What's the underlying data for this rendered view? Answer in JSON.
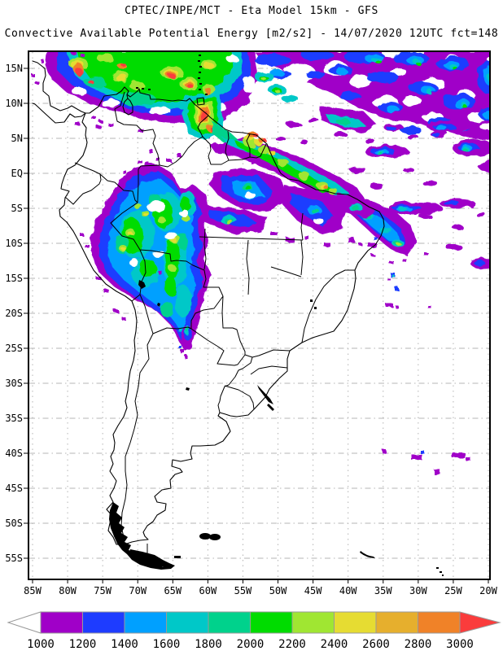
{
  "header": {
    "title_line1": "CPTEC/INPE/MCT -  Eta Model 15km - GFS",
    "title_line2": "Convective Available Potential Energy [m2/s2] - 14/07/2020 12UTC fct=148"
  },
  "map": {
    "y_axis_labels": [
      "15N",
      "10N",
      "5N",
      "EQ",
      "5S",
      "10S",
      "15S",
      "20S",
      "25S",
      "30S",
      "35S",
      "40S",
      "45S",
      "50S",
      "55S"
    ],
    "x_axis_labels": [
      "85W",
      "80W",
      "75W",
      "70W",
      "65W",
      "60W",
      "55W",
      "50W",
      "45W",
      "40W",
      "35W",
      "30W",
      "25W",
      "20W"
    ]
  },
  "colorbar": {
    "values": [
      "1000",
      "1200",
      "1400",
      "1600",
      "1800",
      "2000",
      "2200",
      "2400",
      "2600",
      "2800",
      "3000"
    ],
    "segment_colors": [
      "#A000C8",
      "#1E3CFF",
      "#00A0FF",
      "#00C8C8",
      "#00D28C",
      "#00DC00",
      "#A0E632",
      "#E6DC32",
      "#E6AF2D",
      "#F08228"
    ],
    "left_arrow_color": "#ffffff",
    "right_arrow_color": "#FA3C3C",
    "outline_color": "#999999"
  },
  "chart_data": {
    "type": "heatmap",
    "title": "CPTEC/INPE/MCT -  Eta Model 15km - GFS",
    "subtitle": "Convective Available Potential Energy [m2/s2] - 14/07/2020 12UTC fct=148",
    "institution": "CPTEC/INPE/MCT",
    "model": "Eta Model 15km - GFS",
    "variable": "Convective Available Potential Energy",
    "units": "m2/s2",
    "valid_date": "14/07/2020",
    "valid_time": "12UTC",
    "forecast_hour": "fct=148",
    "region": "South America",
    "lat_ticks": [
      "15N",
      "10N",
      "5N",
      "EQ",
      "5S",
      "10S",
      "15S",
      "20S",
      "25S",
      "30S",
      "35S",
      "40S",
      "45S",
      "50S",
      "55S"
    ],
    "lon_ticks": [
      "85W",
      "80W",
      "75W",
      "70W",
      "65W",
      "60W",
      "55W",
      "50W",
      "45W",
      "40W",
      "35W",
      "30W",
      "25W",
      "20W"
    ],
    "contour_levels": [
      1000,
      1200,
      1400,
      1600,
      1800,
      2000,
      2200,
      2400,
      2600,
      2800,
      3000
    ],
    "palette": [
      "#A000C8",
      "#1E3CFF",
      "#00A0FF",
      "#00C8C8",
      "#00D28C",
      "#00DC00",
      "#A0E632",
      "#E6DC32",
      "#E6AF2D",
      "#F08228",
      "#FA3C3C"
    ],
    "grid_interval_degrees": 5,
    "legend_position": "bottom",
    "notes": "Shaded CAPE field: strongest values (2200-3000+) over the southern Caribbean near 10-15N and near Trinidad; broad 1000-2200 area over western Amazonia extending south along the Andes to ~22S; scattered 1000-1600 cells along the ITCZ over the tropical Atlantic and the north coast of South America."
  }
}
